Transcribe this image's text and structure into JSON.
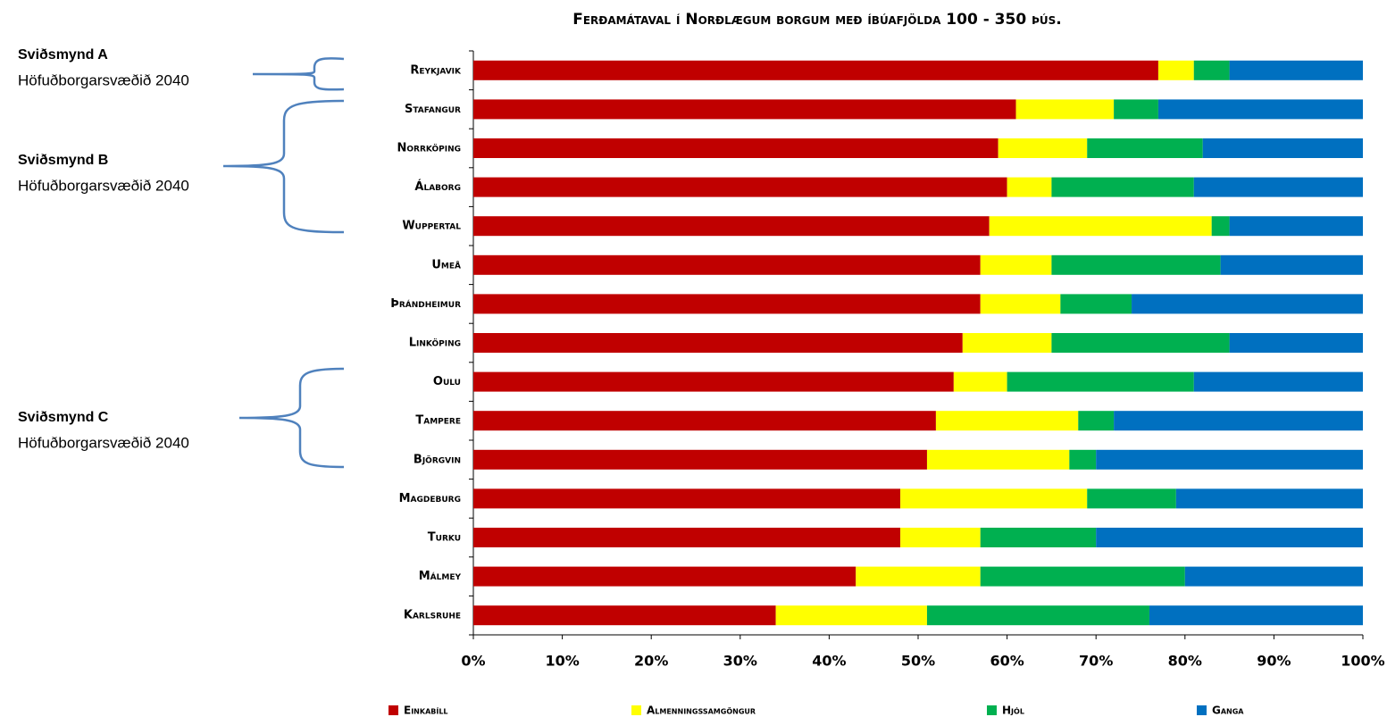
{
  "chart_data": {
    "type": "stacked-bar-horizontal",
    "title": "Ferðamátaval í Norðlægum borgum með íbúafjölda  100 - 350 þús.",
    "categories": [
      "Reykjavik",
      "Stafangur",
      "Norrköping",
      "Álaborg",
      "Wuppertal",
      "Umeå",
      "Þrándheimur",
      "Linköping",
      "Oulu",
      "Tampere",
      "Björgvin",
      "Magdeburg",
      "Turku",
      "Málmey",
      "Karlsruhe"
    ],
    "series": [
      {
        "name": "Einkabíll",
        "color": "#c00000",
        "values": [
          77,
          61,
          59,
          60,
          58,
          57,
          57,
          55,
          54,
          52,
          51,
          48,
          48,
          43,
          34
        ]
      },
      {
        "name": "Almenningssamgöngur",
        "color": "#ffff00",
        "values": [
          4,
          11,
          10,
          5,
          25,
          8,
          9,
          10,
          6,
          16,
          16,
          21,
          9,
          14,
          17
        ]
      },
      {
        "name": "Hjól",
        "color": "#00b050",
        "values": [
          4,
          5,
          13,
          16,
          2,
          19,
          8,
          20,
          21,
          4,
          3,
          10,
          13,
          23,
          25
        ]
      },
      {
        "name": "Ganga",
        "color": "#0070c0",
        "values": [
          15,
          23,
          18,
          19,
          15,
          16,
          26,
          15,
          19,
          28,
          30,
          21,
          30,
          20,
          24
        ]
      }
    ],
    "xlim": [
      0,
      100
    ],
    "xticks": [
      {
        "value": 0,
        "label": "0%"
      },
      {
        "value": 10,
        "label": "10%"
      },
      {
        "value": 20,
        "label": "20%"
      },
      {
        "value": 30,
        "label": "30%"
      },
      {
        "value": 40,
        "label": "40%"
      },
      {
        "value": 50,
        "label": "50%"
      },
      {
        "value": 60,
        "label": "60%"
      },
      {
        "value": 70,
        "label": "70%"
      },
      {
        "value": 80,
        "label": "80%"
      },
      {
        "value": 90,
        "label": "90%"
      },
      {
        "value": 100,
        "label": "100%"
      }
    ],
    "annotations": [
      {
        "title": "Sviðsmynd A",
        "text": "Höfuðborgarsvæðið 2040"
      },
      {
        "title": "Sviðsmynd B",
        "text": "Höfuðborgarsvæðið 2040"
      },
      {
        "title": "Sviðsmynd C",
        "text": "Höfuðborgarsvæðið 2040"
      }
    ]
  }
}
